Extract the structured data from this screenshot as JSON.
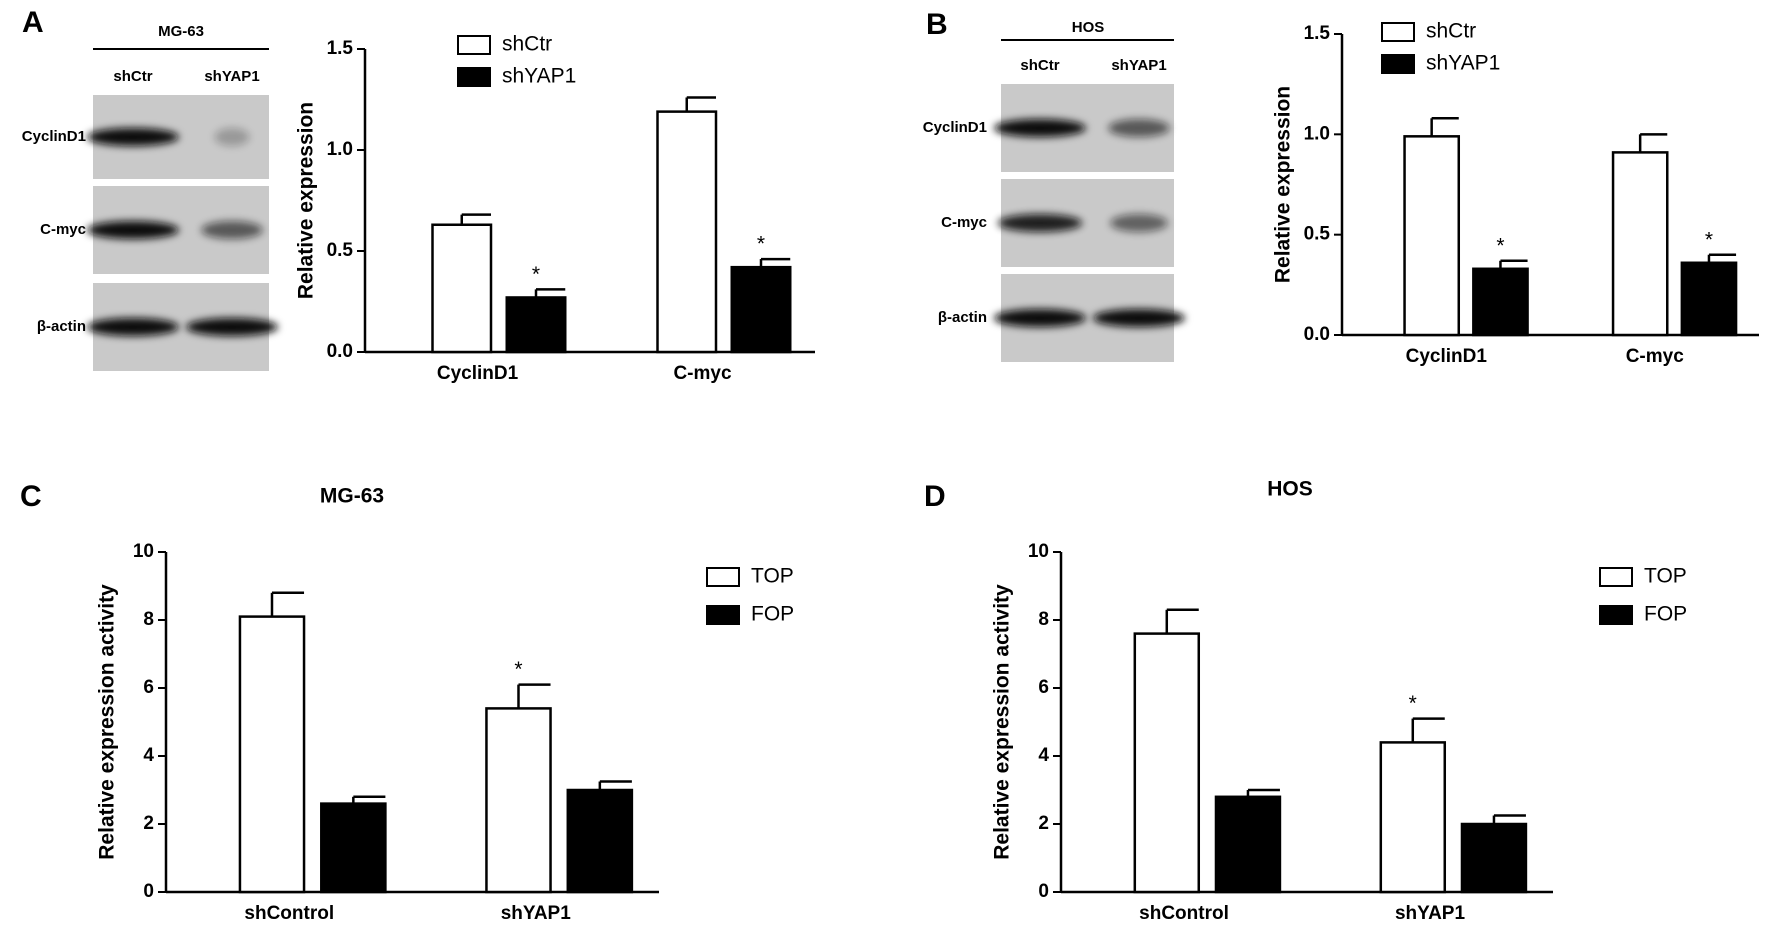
{
  "blots": [
    {
      "panel": "A",
      "cell_line": "MG-63",
      "lanes": [
        "shCtr",
        "shYAP1"
      ],
      "rows": [
        "CyclinD1",
        "C-myc",
        "β-actin"
      ]
    },
    {
      "panel": "B",
      "cell_line": "HOS",
      "lanes": [
        "shCtr",
        "shYAP1"
      ],
      "rows": [
        "CyclinD1",
        "C-myc",
        "β-actin"
      ]
    }
  ],
  "chart_data": [
    {
      "type": "bar",
      "y_label": "Relative expression",
      "categories": [
        "CyclinD1",
        "C-myc"
      ],
      "series": [
        {
          "name": "shCtr",
          "color": "#ffffff",
          "values": [
            0.63,
            1.19
          ],
          "errors": [
            0.05,
            0.07
          ],
          "significance": [
            null,
            null
          ]
        },
        {
          "name": "shYAP1",
          "color": "#000000",
          "values": [
            0.27,
            0.42
          ],
          "errors": [
            0.04,
            0.04
          ],
          "significance": [
            "*",
            "*"
          ]
        }
      ],
      "ylim": [
        0,
        1.5
      ],
      "yticks": [
        {
          "value": 0,
          "label": "0.0"
        },
        0.5,
        {
          "value": 1,
          "label": "1.0"
        },
        1.5
      ]
    },
    {
      "type": "bar",
      "y_label": "Relative expression",
      "categories": [
        "CyclinD1",
        "C-myc"
      ],
      "series": [
        {
          "name": "shCtr",
          "color": "#ffffff",
          "values": [
            0.99,
            0.91
          ],
          "errors": [
            0.09,
            0.09
          ],
          "significance": [
            null,
            null
          ]
        },
        {
          "name": "shYAP1",
          "color": "#000000",
          "values": [
            0.33,
            0.36
          ],
          "errors": [
            0.04,
            0.04
          ],
          "significance": [
            "*",
            "*"
          ]
        }
      ],
      "ylim": [
        0,
        1.5
      ],
      "yticks": [
        {
          "value": 0,
          "label": "0.0"
        },
        0.5,
        {
          "value": 1,
          "label": "1.0"
        },
        1.5
      ]
    },
    {
      "type": "bar",
      "panel": "C",
      "title": "MG-63",
      "y_label": "Relative expression activity",
      "categories": [
        "shControl",
        "shYAP1"
      ],
      "series": [
        {
          "name": "TOP",
          "color": "#ffffff",
          "values": [
            8.1,
            5.4
          ],
          "errors": [
            0.7,
            0.7
          ],
          "significance": [
            null,
            "*"
          ]
        },
        {
          "name": "FOP",
          "color": "#000000",
          "values": [
            2.6,
            3.0
          ],
          "errors": [
            0.2,
            0.25
          ],
          "significance": [
            null,
            null
          ]
        }
      ],
      "ylim": [
        0,
        10
      ],
      "yticks": [
        0,
        2,
        4,
        6,
        8,
        10
      ]
    },
    {
      "type": "bar",
      "panel": "D",
      "title": "HOS",
      "y_label": "Relative expression activity",
      "categories": [
        "shControl",
        "shYAP1"
      ],
      "series": [
        {
          "name": "TOP",
          "color": "#ffffff",
          "values": [
            7.6,
            4.4
          ],
          "errors": [
            0.7,
            0.7
          ],
          "significance": [
            null,
            "*"
          ]
        },
        {
          "name": "FOP",
          "color": "#000000",
          "values": [
            2.8,
            2.0
          ],
          "errors": [
            0.2,
            0.25
          ],
          "significance": [
            null,
            null
          ]
        }
      ],
      "ylim": [
        0,
        10
      ],
      "yticks": [
        0,
        2,
        4,
        6,
        8,
        10
      ]
    }
  ]
}
